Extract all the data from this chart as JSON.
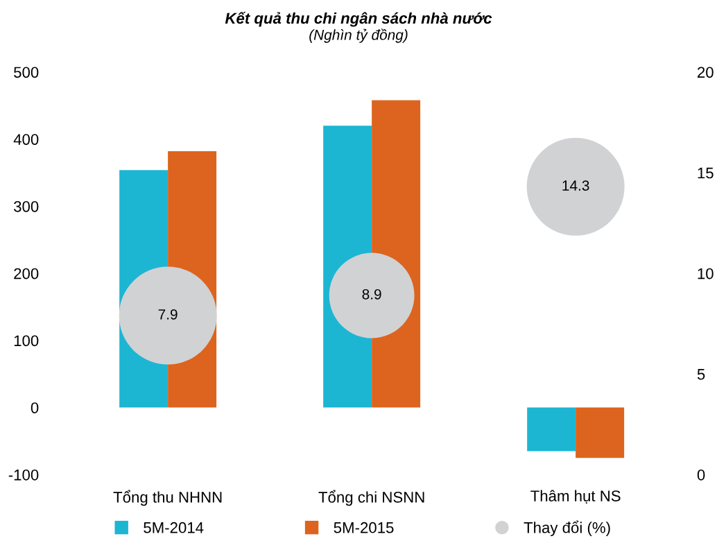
{
  "chart_data": {
    "type": "bar",
    "title": "Kết quả thu chi ngân sách nhà nước",
    "subtitle": "(Nghìn tỷ đồng)",
    "categories": [
      "Tổng thu NHNN",
      "Tổng chi NSNN",
      "Thâm hụt NS"
    ],
    "series": [
      {
        "name": "5M-2014",
        "color": "#1cb6d3",
        "values": [
          354,
          420,
          -65
        ]
      },
      {
        "name": "5M-2015",
        "color": "#dc641e",
        "values": [
          382,
          458,
          -75
        ]
      },
      {
        "name": "Thay đổi (%)",
        "type": "bubble",
        "axis": "y2",
        "color": "#d1d2d4",
        "values": [
          7.9,
          8.9,
          14.3
        ],
        "sizes": [
          1,
          0.76,
          1
        ],
        "value_labels": [
          "7.9",
          "8.9",
          "14.3"
        ]
      }
    ],
    "ylim": [
      -100,
      500
    ],
    "yticks": [
      -100,
      0,
      100,
      200,
      300,
      400,
      500
    ],
    "y2lim": [
      0,
      20
    ],
    "y2ticks": [
      0,
      5,
      10,
      15,
      20
    ],
    "grid": false,
    "legend": "bottom"
  }
}
